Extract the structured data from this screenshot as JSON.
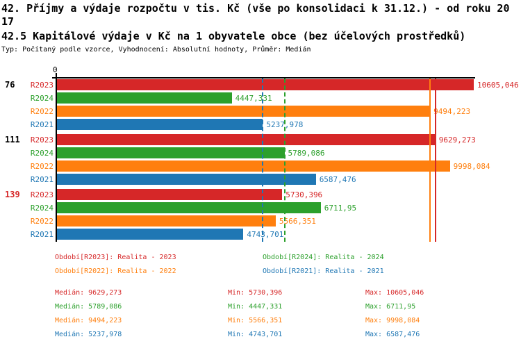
{
  "header": {
    "title_line1": "42. Příjmy a výdaje rozpočtu v tis. Kč (vše po konsolidaci k 31.12.) - od roku 20",
    "title_line2": "17",
    "subtitle": "42.5 Kapitálové výdaje v Kč na 1 obyvatele obce (bez účelových prostředků)",
    "meta": "Typ: Počítaný podle vzorce, Vyhodnocení: Absolutní hodnoty, Průměr: Medián"
  },
  "colors": {
    "r2023": "#d62728",
    "r2024": "#2ca02c",
    "r2022": "#ff7f0e",
    "r2021": "#1f77b4",
    "axis": "#000000",
    "highlight_group": "#d62728"
  },
  "chart_data": {
    "type": "bar",
    "orientation": "horizontal",
    "axis_zero_label": "0",
    "xmax": 10605.046,
    "grid": false,
    "groups": [
      {
        "label": "76",
        "label_color": "#000000",
        "bars": [
          {
            "series": "R2023",
            "value": 10605.046,
            "value_label": "10605,046",
            "color": "#d62728"
          },
          {
            "series": "R2024",
            "value": 4447.331,
            "value_label": "4447,331",
            "color": "#2ca02c"
          },
          {
            "series": "R2022",
            "value": 9494.223,
            "value_label": "9494,223",
            "color": "#ff7f0e"
          },
          {
            "series": "R2021",
            "value": 5237.978,
            "value_label": "5237,978",
            "color": "#1f77b4"
          }
        ]
      },
      {
        "label": "111",
        "label_color": "#000000",
        "bars": [
          {
            "series": "R2023",
            "value": 9629.273,
            "value_label": "9629,273",
            "color": "#d62728"
          },
          {
            "series": "R2024",
            "value": 5789.086,
            "value_label": "5789,086",
            "color": "#2ca02c"
          },
          {
            "series": "R2022",
            "value": 9998.084,
            "value_label": "9998,084",
            "color": "#ff7f0e"
          },
          {
            "series": "R2021",
            "value": 6587.476,
            "value_label": "6587,476",
            "color": "#1f77b4"
          }
        ]
      },
      {
        "label": "139",
        "label_color": "#d62728",
        "bars": [
          {
            "series": "R2023",
            "value": 5730.396,
            "value_label": "5730,396",
            "color": "#d62728"
          },
          {
            "series": "R2024",
            "value": 6711.95,
            "value_label": "6711,95",
            "color": "#2ca02c"
          },
          {
            "series": "R2022",
            "value": 5566.351,
            "value_label": "5566,351",
            "color": "#ff7f0e"
          },
          {
            "series": "R2021",
            "value": 4743.701,
            "value_label": "4743,701",
            "color": "#1f77b4"
          }
        ]
      }
    ],
    "median_lines": [
      {
        "series": "R2021",
        "value": 5237.978,
        "color": "#1f77b4",
        "style": "dashed"
      },
      {
        "series": "R2024",
        "value": 5789.086,
        "color": "#2ca02c",
        "style": "dashed"
      },
      {
        "series": "R2022",
        "value": 9494.223,
        "color": "#ff7f0e",
        "style": "solid"
      },
      {
        "series": "R2023",
        "value": 9629.273,
        "color": "#d62728",
        "style": "solid"
      }
    ]
  },
  "legend": {
    "items": [
      {
        "label": "Období[R2023]: Realita - 2023",
        "color": "#d62728"
      },
      {
        "label": "Období[R2024]: Realita - 2024",
        "color": "#2ca02c"
      },
      {
        "label": "Období[R2022]: Realita - 2022",
        "color": "#ff7f0e"
      },
      {
        "label": "Období[R2021]: Realita - 2021",
        "color": "#1f77b4"
      }
    ]
  },
  "stats": {
    "labels": {
      "median": "Medián",
      "min": "Min",
      "max": "Max"
    },
    "rows": [
      {
        "series": "R2023",
        "color": "#d62728",
        "median": "9629,273",
        "min": "5730,396",
        "max": "10605,046"
      },
      {
        "series": "R2024",
        "color": "#2ca02c",
        "median": "5789,086",
        "min": "4447,331",
        "max": "6711,95"
      },
      {
        "series": "R2022",
        "color": "#ff7f0e",
        "median": "9494,223",
        "min": "5566,351",
        "max": "9998,084"
      },
      {
        "series": "R2021",
        "color": "#1f77b4",
        "median": "5237,978",
        "min": "4743,701",
        "max": "6587,476"
      }
    ]
  }
}
